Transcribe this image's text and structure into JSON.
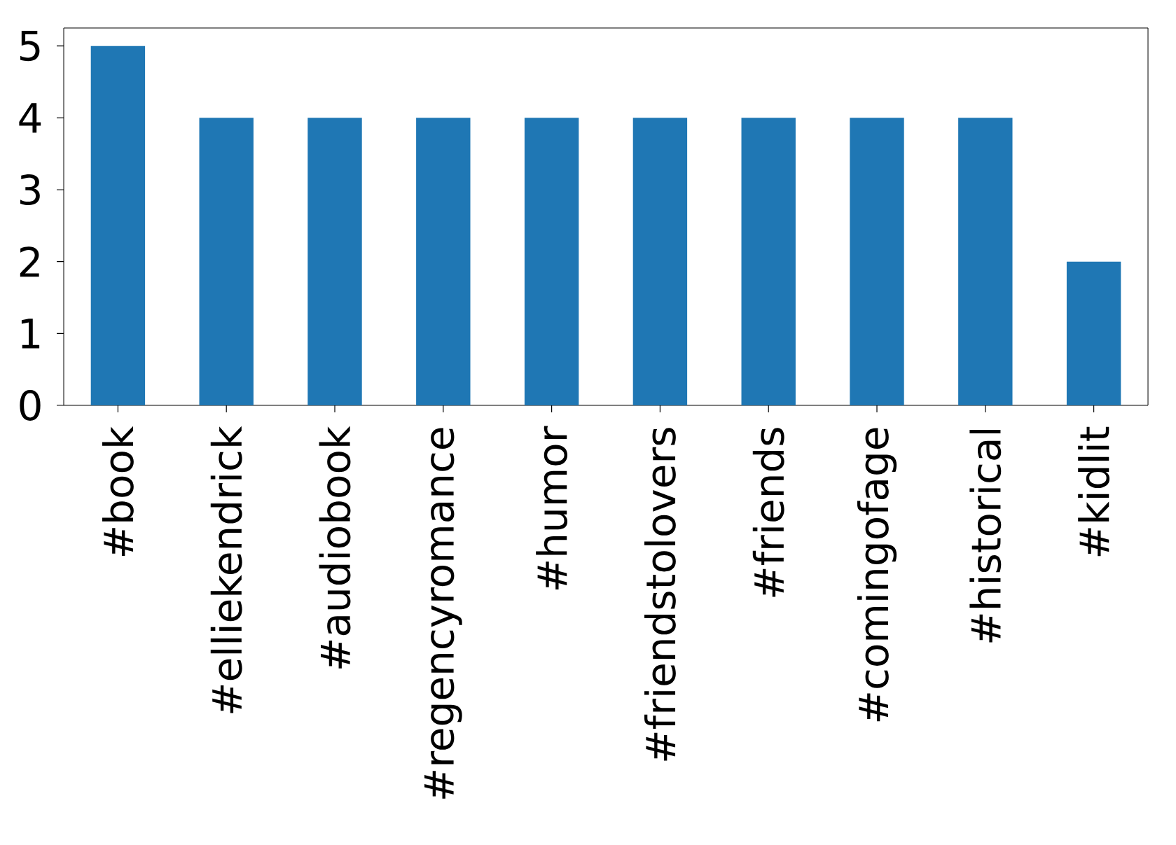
{
  "chart_data": {
    "type": "bar",
    "categories": [
      "#book",
      "#elliekendrick",
      "#audiobook",
      "#regencyromance",
      "#humor",
      "#friendstolovers",
      "#friends",
      "#comingofage",
      "#historical",
      "#kidlit"
    ],
    "values": [
      5,
      4,
      4,
      4,
      4,
      4,
      4,
      4,
      4,
      2
    ],
    "color": "#1f77b4",
    "ylim": [
      0,
      5.25
    ],
    "yticks": [
      0,
      1,
      2,
      3,
      4,
      5
    ],
    "grid": false
  }
}
